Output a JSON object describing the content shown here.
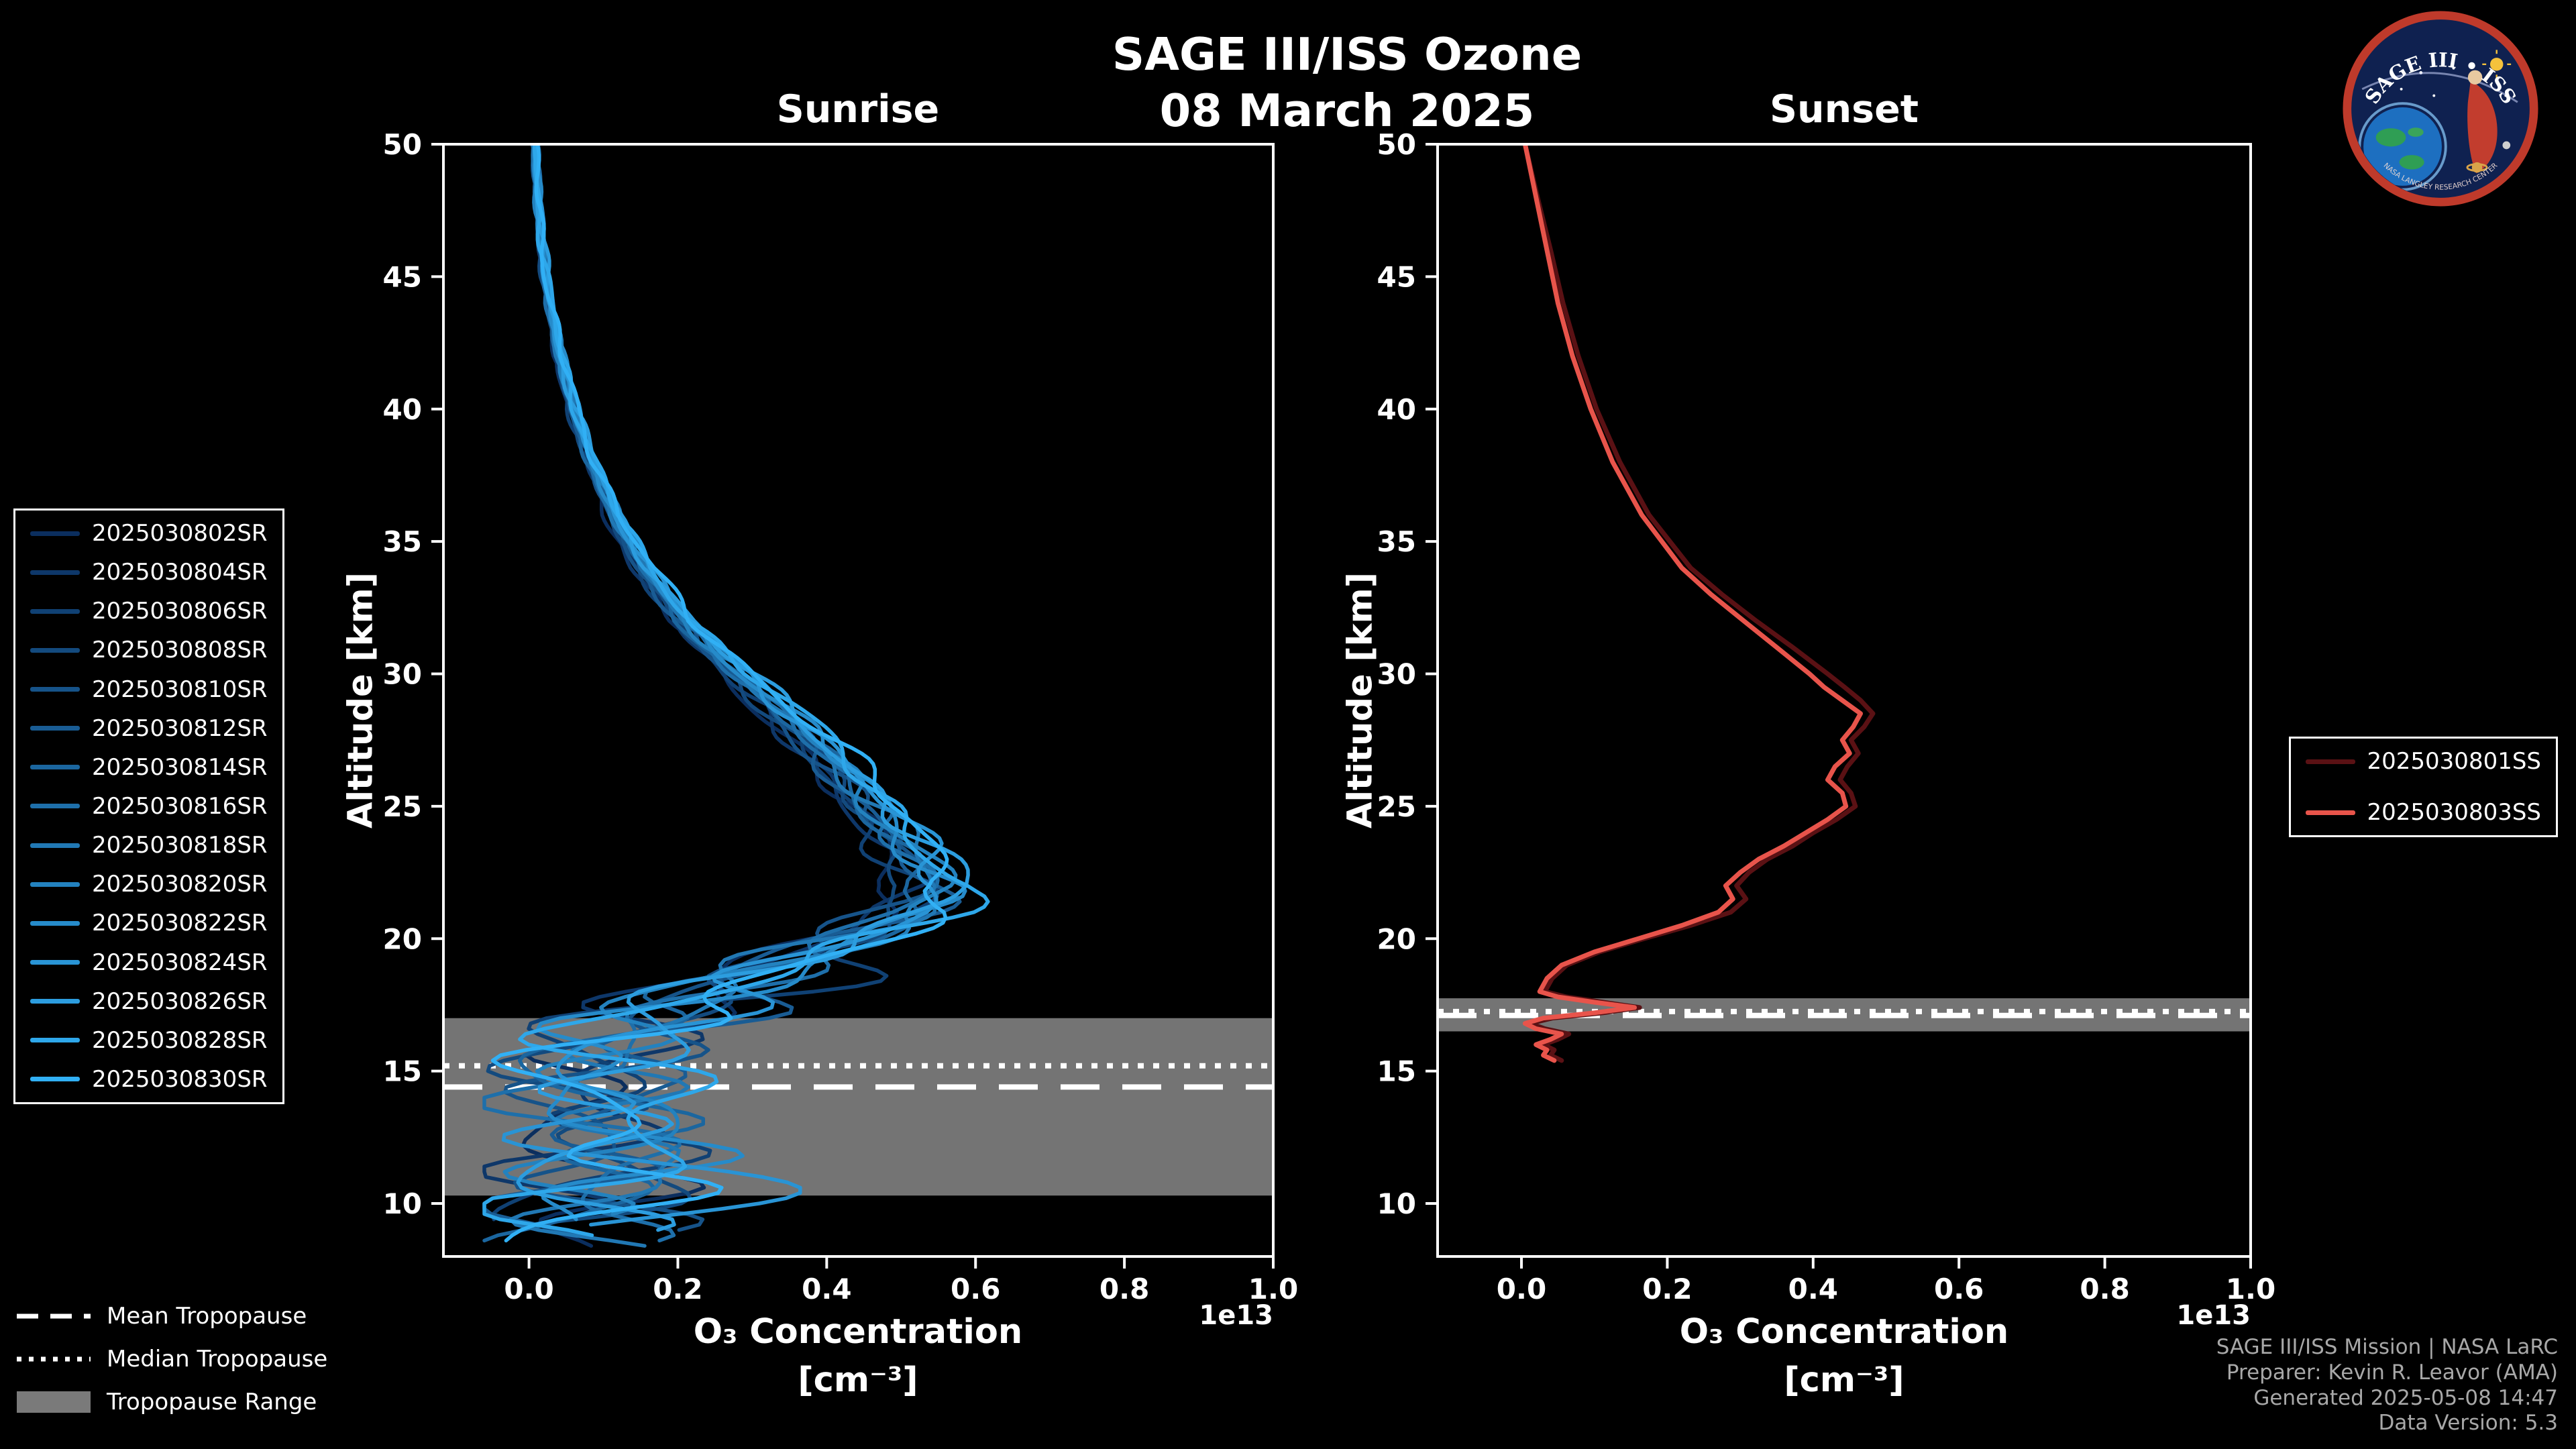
{
  "header": {
    "title": "SAGE III/ISS Ozone",
    "date": "08 March 2025"
  },
  "logo": {
    "title_text": "SAGE III • ISS",
    "ring_text": "NASA LANGLEY RESEARCH CENTER",
    "ring_color": "#bf3a2b",
    "inner_color": "#0f2150"
  },
  "footer": {
    "lines": [
      "SAGE III/ISS Mission | NASA LaRC",
      "Preparer: Kevin R. Leavor (AMA)",
      "Generated 2025-05-08 14:47",
      "Data Version: 5.3"
    ]
  },
  "tropopause_legend": {
    "items": [
      {
        "style": "dashed",
        "label": "Mean Tropopause"
      },
      {
        "style": "dotted",
        "label": "Median Tropopause"
      },
      {
        "style": "patch",
        "label": "Tropopause Range",
        "color": "#7a7a7a"
      }
    ]
  },
  "chart_data": {
    "type": "line",
    "x_axis": {
      "label_line1": "O₃ Concentration",
      "label_line2": "[cm⁻³]",
      "offset_text": "1e13",
      "ticks": [
        0.0,
        0.2,
        0.4,
        0.6,
        0.8,
        1.0
      ],
      "tick_labels": [
        "0.0",
        "0.2",
        "0.4",
        "0.6",
        "0.8",
        "1.0"
      ],
      "lim": [
        -0.115,
        1.0
      ]
    },
    "y_axis": {
      "label": "Altitude [km]",
      "ticks": [
        10,
        15,
        20,
        25,
        30,
        35,
        40,
        45,
        50
      ],
      "lim": [
        8,
        50
      ]
    },
    "panels": [
      {
        "title": "Sunrise",
        "tropopause": {
          "mean_km": 14.4,
          "median_km": 15.2,
          "range_km": [
            10.3,
            17.0
          ]
        },
        "base_profile": {
          "altitude_km": [
            50,
            48,
            46,
            44,
            42,
            40,
            38,
            36,
            34,
            32,
            31,
            30,
            29,
            28,
            27,
            26,
            25,
            24,
            23,
            22.5,
            22,
            21.5,
            21,
            20.5,
            20,
            19.5,
            19,
            18.5,
            18,
            17.5,
            17,
            16.5,
            16,
            15.5,
            15,
            14.5,
            14,
            13.5,
            13,
            12.5,
            12,
            11.5,
            11,
            10.5,
            10,
            9.5,
            9,
            8.5,
            8
          ],
          "o3_1e13": [
            0.008,
            0.012,
            0.018,
            0.028,
            0.042,
            0.06,
            0.085,
            0.115,
            0.155,
            0.21,
            0.245,
            0.285,
            0.325,
            0.365,
            0.4,
            0.435,
            0.465,
            0.495,
            0.525,
            0.54,
            0.55,
            0.545,
            0.52,
            0.48,
            0.43,
            0.38,
            0.33,
            0.28,
            0.235,
            0.19,
            0.155,
            0.125,
            0.105,
            0.09,
            0.085,
            0.08,
            0.085,
            0.09,
            0.1,
            0.11,
            0.115,
            0.11,
            0.1,
            0.09,
            0.08,
            0.07,
            0.06,
            0.05,
            0.045
          ]
        },
        "series": [
          {
            "name": "2025030802SR",
            "color": "#0b2e5e",
            "scale": 0.92
          },
          {
            "name": "2025030804SR",
            "color": "#0e3769",
            "scale": 0.93
          },
          {
            "name": "2025030806SR",
            "color": "#104174",
            "scale": 0.94
          },
          {
            "name": "2025030808SR",
            "color": "#134a7e",
            "scale": 0.95
          },
          {
            "name": "2025030810SR",
            "color": "#165389",
            "scale": 0.96
          },
          {
            "name": "2025030812SR",
            "color": "#195c94",
            "scale": 0.97
          },
          {
            "name": "2025030814SR",
            "color": "#1b669f",
            "scale": 0.98
          },
          {
            "name": "2025030816SR",
            "color": "#1e6faa",
            "scale": 0.99
          },
          {
            "name": "2025030818SR",
            "color": "#2178b4",
            "scale": 1.0
          },
          {
            "name": "2025030820SR",
            "color": "#2382bf",
            "scale": 1.01
          },
          {
            "name": "2025030822SR",
            "color": "#268bca",
            "scale": 1.02
          },
          {
            "name": "2025030824SR",
            "color": "#2994d5",
            "scale": 1.03
          },
          {
            "name": "2025030826SR",
            "color": "#2c9ddf",
            "scale": 1.04
          },
          {
            "name": "2025030828SR",
            "color": "#2ea7ea",
            "scale": 1.05
          },
          {
            "name": "2025030830SR",
            "color": "#31b0f5",
            "scale": 1.06
          }
        ]
      },
      {
        "title": "Sunset",
        "tropopause": {
          "mean_km": 17.1,
          "median_km": 17.25,
          "range_km": [
            16.5,
            17.75
          ]
        },
        "profiles": [
          {
            "name": "2025030801SS",
            "color": "#5a1114",
            "altitude_km": [
              50,
              48,
              46,
              44,
              42,
              40,
              38,
              36,
              34,
              33,
              32,
              31,
              30,
              29.5,
              29,
              28.5,
              28,
              27.5,
              27,
              26.5,
              26,
              25.5,
              25,
              24.5,
              24,
              23.5,
              23,
              22.5,
              22,
              21.5,
              21,
              20.5,
              20,
              19.5,
              19,
              18.5,
              18,
              17.8,
              17.6,
              17.4,
              17.2,
              17,
              16.8,
              16.6,
              16.4,
              16.2,
              16,
              15.8,
              15.6,
              15.4
            ],
            "o3_1e13": [
              0.005,
              0.022,
              0.04,
              0.057,
              0.078,
              0.103,
              0.135,
              0.175,
              0.232,
              0.275,
              0.322,
              0.372,
              0.42,
              0.443,
              0.465,
              0.482,
              0.47,
              0.452,
              0.462,
              0.447,
              0.437,
              0.452,
              0.458,
              0.432,
              0.4,
              0.372,
              0.337,
              0.312,
              0.295,
              0.308,
              0.287,
              0.232,
              0.168,
              0.107,
              0.062,
              0.042,
              0.032,
              0.062,
              0.112,
              0.162,
              0.112,
              0.042,
              0.012,
              0.032,
              0.065,
              0.05,
              0.03,
              0.045,
              0.04,
              0.055
            ]
          },
          {
            "name": "2025030803SS",
            "color": "#e8544b",
            "altitude_km": [
              50,
              48,
              46,
              44,
              42,
              40,
              38,
              36,
              34,
              33,
              32,
              31,
              30,
              29.5,
              29,
              28.5,
              28,
              27.5,
              27,
              26.5,
              26,
              25.5,
              25,
              24.5,
              24,
              23.5,
              23,
              22.5,
              22,
              21.5,
              21,
              20.5,
              20,
              19.5,
              19,
              18.5,
              18,
              17.8,
              17.6,
              17.4,
              17.2,
              17,
              16.8,
              16.6,
              16.4,
              16.2,
              16,
              15.8,
              15.6,
              15.4
            ],
            "o3_1e13": [
              0.005,
              0.02,
              0.035,
              0.05,
              0.07,
              0.095,
              0.125,
              0.165,
              0.22,
              0.26,
              0.305,
              0.35,
              0.395,
              0.415,
              0.44,
              0.465,
              0.455,
              0.44,
              0.45,
              0.43,
              0.42,
              0.44,
              0.445,
              0.42,
              0.39,
              0.36,
              0.325,
              0.3,
              0.28,
              0.29,
              0.27,
              0.22,
              0.16,
              0.1,
              0.055,
              0.035,
              0.025,
              0.05,
              0.1,
              0.155,
              0.1,
              0.03,
              0.005,
              0.02,
              0.055,
              0.04,
              0.02,
              0.035,
              0.03,
              0.045
            ]
          }
        ]
      }
    ]
  }
}
